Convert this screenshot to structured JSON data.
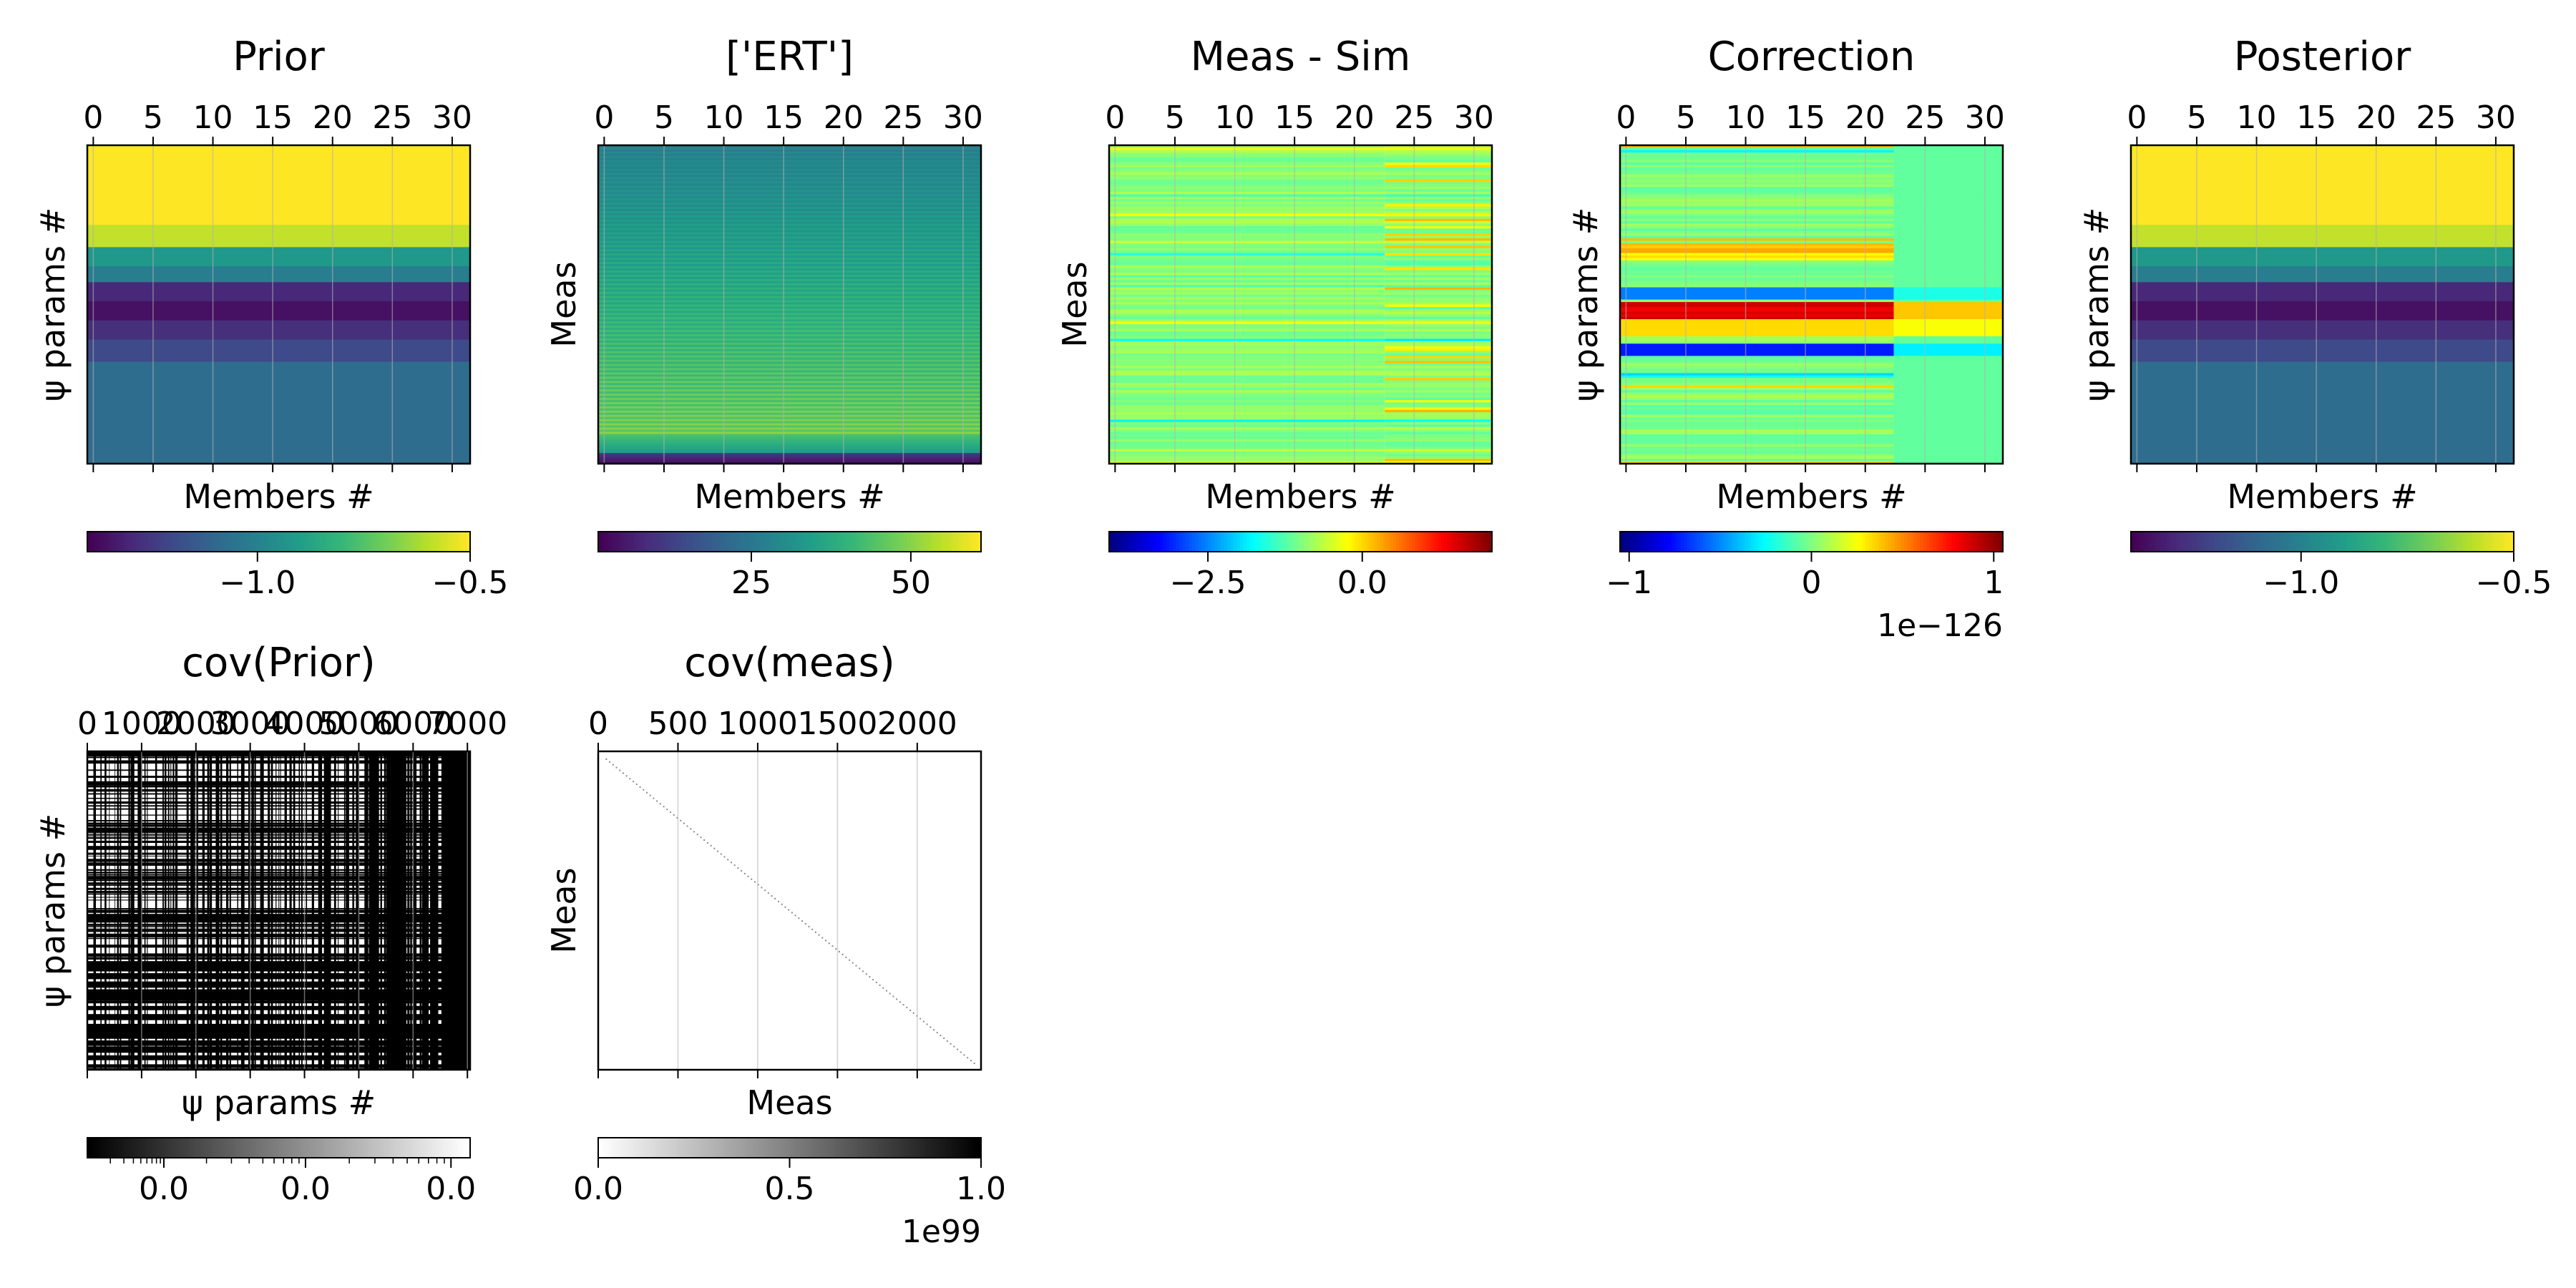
{
  "chart_data": [
    {
      "type": "heatmap",
      "title": "Prior",
      "xlabel": "Members #",
      "ylabel": "ψ params #",
      "x_ticks": [
        "0",
        "5",
        "10",
        "15",
        "20",
        "25",
        "30"
      ],
      "xlim": [
        -0.5,
        31.5
      ],
      "colormap": "viridis",
      "colorbar": {
        "ticks": [
          "−1.0",
          "−0.5"
        ],
        "tick_values": [
          -1.0,
          -0.5
        ],
        "range": [
          -1.4,
          -0.5
        ]
      },
      "row_bands": [
        {
          "from": 0.0,
          "to": 0.25,
          "value": -0.5
        },
        {
          "from": 0.25,
          "to": 0.32,
          "value": -0.58
        },
        {
          "from": 0.32,
          "to": 0.38,
          "value": -0.92
        },
        {
          "from": 0.38,
          "to": 0.43,
          "value": -1.02
        },
        {
          "from": 0.43,
          "to": 0.49,
          "value": -1.3
        },
        {
          "from": 0.49,
          "to": 0.55,
          "value": -1.36
        },
        {
          "from": 0.55,
          "to": 0.61,
          "value": -1.28
        },
        {
          "from": 0.61,
          "to": 0.68,
          "value": -1.2
        },
        {
          "from": 0.68,
          "to": 1.0,
          "value": -1.08
        }
      ]
    },
    {
      "type": "heatmap",
      "title": "['ERT']",
      "xlabel": "Members #",
      "ylabel": "Meas",
      "x_ticks": [
        "0",
        "5",
        "10",
        "15",
        "20",
        "25",
        "30"
      ],
      "xlim": [
        -0.5,
        31.5
      ],
      "colormap": "viridis",
      "pattern": "stripes",
      "colorbar": {
        "ticks": [
          "25",
          "50"
        ],
        "tick_values": [
          25,
          50
        ],
        "range": [
          1,
          61
        ]
      }
    },
    {
      "type": "heatmap",
      "title": "Meas - Sim",
      "xlabel": "Members #",
      "ylabel": "Meas",
      "x_ticks": [
        "0",
        "5",
        "10",
        "15",
        "20",
        "25",
        "30"
      ],
      "xlim": [
        -0.5,
        31.5
      ],
      "colormap": "jet",
      "pattern": "noise",
      "colorbar": {
        "ticks": [
          "−2.5",
          "0.0"
        ],
        "tick_values": [
          -2.5,
          0.0
        ],
        "range": [
          -4.1,
          2.1
        ]
      }
    },
    {
      "type": "heatmap",
      "title": "Correction",
      "xlabel": "Members #",
      "ylabel": "ψ params #",
      "x_ticks": [
        "0",
        "5",
        "10",
        "15",
        "20",
        "25",
        "30"
      ],
      "xlim": [
        -0.5,
        31.5
      ],
      "colormap": "jet",
      "pattern": "correction",
      "colorbar": {
        "ticks": [
          "−1",
          "0",
          "1"
        ],
        "tick_values": [
          -1,
          0,
          1
        ],
        "range": [
          -1.05,
          1.05
        ],
        "offset": "1e−126"
      }
    },
    {
      "type": "heatmap",
      "title": "Posterior",
      "xlabel": "Members #",
      "ylabel": "ψ params #",
      "x_ticks": [
        "0",
        "5",
        "10",
        "15",
        "20",
        "25",
        "30"
      ],
      "xlim": [
        -0.5,
        31.5
      ],
      "colormap": "viridis",
      "colorbar": {
        "ticks": [
          "−1.0",
          "−0.5"
        ],
        "tick_values": [
          -1.0,
          -0.5
        ],
        "range": [
          -1.4,
          -0.5
        ]
      },
      "row_bands": [
        {
          "from": 0.0,
          "to": 0.25,
          "value": -0.5
        },
        {
          "from": 0.25,
          "to": 0.32,
          "value": -0.58
        },
        {
          "from": 0.32,
          "to": 0.38,
          "value": -0.92
        },
        {
          "from": 0.38,
          "to": 0.43,
          "value": -1.02
        },
        {
          "from": 0.43,
          "to": 0.49,
          "value": -1.3
        },
        {
          "from": 0.49,
          "to": 0.55,
          "value": -1.36
        },
        {
          "from": 0.55,
          "to": 0.61,
          "value": -1.28
        },
        {
          "from": 0.61,
          "to": 0.68,
          "value": -1.2
        },
        {
          "from": 0.68,
          "to": 1.0,
          "value": -1.08
        }
      ]
    },
    {
      "type": "heatmap",
      "title": "cov(Prior)",
      "xlabel": "ψ params #",
      "ylabel": "ψ params #",
      "x_ticks": [
        "0",
        "1000",
        "2000",
        "3000",
        "4000",
        "5000",
        "6000",
        "7000"
      ],
      "x_tick_values": [
        0,
        1000,
        2000,
        3000,
        4000,
        5000,
        6000,
        7000
      ],
      "xlim": [
        0,
        7050
      ],
      "colormap": "gray",
      "pattern": "grid",
      "colorbar": {
        "ticks": [
          "0.0",
          "0.0",
          "0.0"
        ],
        "log_scale": true
      }
    },
    {
      "type": "heatmap",
      "title": "cov(meas)",
      "xlabel": "Meas",
      "ylabel": "Meas",
      "x_ticks": [
        "0",
        "500",
        "1000",
        "1500",
        "2000"
      ],
      "x_tick_values": [
        0,
        500,
        1000,
        1500,
        2000
      ],
      "xlim": [
        0,
        2400
      ],
      "colormap": "gray_r",
      "pattern": "diagonal",
      "colorbar": {
        "ticks": [
          "0.0",
          "0.5",
          "1.0"
        ],
        "tick_values": [
          0,
          0.5,
          1.0
        ],
        "range": [
          0,
          1.0
        ],
        "offset": "1e99"
      }
    }
  ]
}
